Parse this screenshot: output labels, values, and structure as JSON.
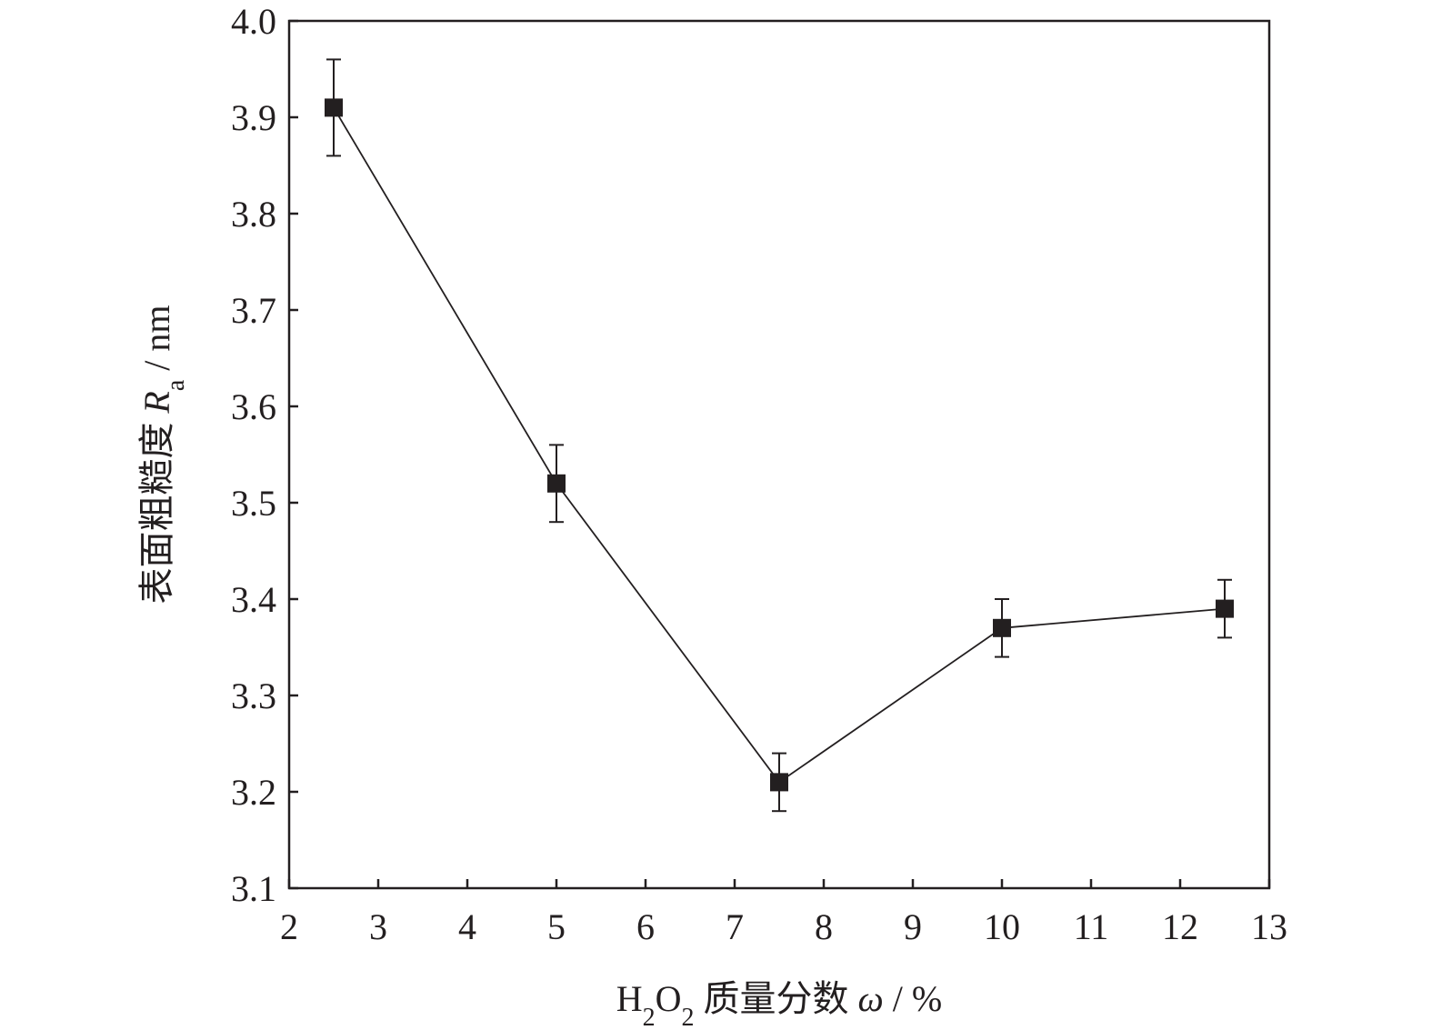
{
  "chart_data": {
    "type": "scatter",
    "title": "",
    "xlabel": {
      "main": "H",
      "sub1": "2",
      "mid": "O",
      "sub2": "2",
      "cjk": " 质量分数 ",
      "var": "ω",
      "unit": " / %"
    },
    "ylabel": {
      "cjk": "表面粗糙度 ",
      "var": "R",
      "sub": "a",
      "unit": " / nm"
    },
    "xlim": [
      2,
      13
    ],
    "ylim": [
      3.1,
      4.0
    ],
    "x_ticks": [
      2,
      3,
      4,
      5,
      6,
      7,
      8,
      9,
      10,
      11,
      12,
      13
    ],
    "x_tick_labels": [
      "2",
      "3",
      "4",
      "5",
      "6",
      "7",
      "8",
      "9",
      "10",
      "11",
      "12",
      "13"
    ],
    "y_ticks": [
      3.1,
      3.2,
      3.3,
      3.4,
      3.5,
      3.6,
      3.7,
      3.8,
      3.9,
      4.0
    ],
    "y_tick_labels": [
      "3.1",
      "3.2",
      "3.3",
      "3.4",
      "3.5",
      "3.6",
      "3.7",
      "3.8",
      "3.9",
      "4.0"
    ],
    "grid": false,
    "legend": "none",
    "series": [
      {
        "marker": "square",
        "line": "solid",
        "color": "#231f20",
        "x": [
          2.5,
          5.0,
          7.5,
          10.0,
          12.5
        ],
        "y": [
          3.91,
          3.52,
          3.21,
          3.37,
          3.39
        ],
        "error": [
          0.05,
          0.04,
          0.03,
          0.03,
          0.03
        ]
      }
    ]
  }
}
